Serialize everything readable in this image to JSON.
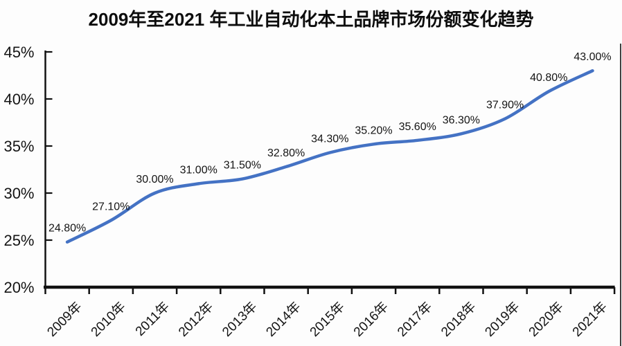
{
  "title": "2009年至2021 年工业自动化本土品牌市场份额变化趋势",
  "colors": {
    "line": "#4472C4",
    "axis": "#111111",
    "text": "#141414",
    "background": "#ffffff",
    "right_border": "#3f3f3f"
  },
  "chart_data": {
    "type": "line",
    "title": "2009年至2021 年工业自动化本土品牌市场份额变化趋势",
    "categories": [
      "2009年",
      "2010年",
      "2011年",
      "2012年",
      "2013年",
      "2014年",
      "2015年",
      "2016年",
      "2017年",
      "2018年",
      "2019年",
      "2020年",
      "2021年"
    ],
    "values": [
      24.8,
      27.1,
      30.0,
      31.0,
      31.5,
      32.8,
      34.3,
      35.2,
      35.6,
      36.3,
      37.9,
      40.8,
      43.0
    ],
    "data_labels": [
      "24.80%",
      "27.10%",
      "30.00%",
      "31.00%",
      "31.50%",
      "32.80%",
      "34.30%",
      "35.20%",
      "35.60%",
      "36.30%",
      "37.90%",
      "40.80%",
      "43.00%"
    ],
    "xlabel": "",
    "ylabel": "",
    "ylim": [
      20,
      45
    ],
    "ytick_step": 5,
    "ytick_labels": [
      "20%",
      "25%",
      "30%",
      "35%",
      "40%",
      "45%"
    ],
    "grid": false,
    "legend": "none",
    "smooth": true,
    "x_label_rotation_deg": -45
  }
}
